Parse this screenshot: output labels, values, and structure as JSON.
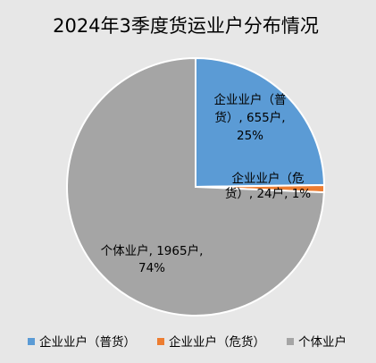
{
  "chart_data": {
    "type": "pie",
    "title": "2024年3季度货运业户分布情况",
    "series": [
      {
        "name": "",
        "values": [
          {
            "category": "企业业户（普货）",
            "value": 655,
            "percent": "25%",
            "color": "#5b9bd5",
            "label_lines": [
              "企业业户（普",
              "货）, 655户,",
              "25%"
            ]
          },
          {
            "category": "企业业户（危货）",
            "value": 24,
            "percent": "1%",
            "color": "#ed7d31",
            "label_lines": [
              "企业业户（危",
              "货）, 24户, 1%"
            ]
          },
          {
            "category": "个体业户",
            "value": 1965,
            "percent": "74%",
            "color": "#a5a5a5",
            "label_lines": [
              "个体业户, 1965户,",
              "74%"
            ]
          }
        ]
      }
    ],
    "value_unit": "户",
    "legend": {
      "position": "bottom",
      "entries": [
        "企业业户（普货）",
        "企业业户（危货）",
        "个体业户"
      ]
    },
    "slice_border_color": "#ffffff"
  }
}
